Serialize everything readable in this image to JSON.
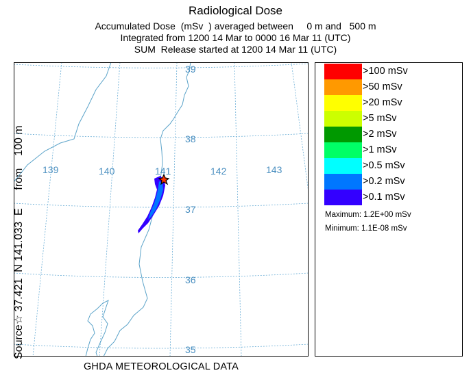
{
  "title": "Radiological Dose",
  "subtitle_lines": [
    "Accumulated Dose  (mSv  ) averaged between     0 m and   500 m",
    "Integrated from 1200 14 Mar to 0000 16 Mar 11 (UTC)",
    "SUM  Release started at 1200 14 Mar 11 (UTC)"
  ],
  "side_label": "Source☆ 37.421  N 141.033  E      from    100 m",
  "footer": "GHDA METEOROLOGICAL DATA",
  "map": {
    "lon_labels": [
      "139",
      "140",
      "141",
      "142",
      "143"
    ],
    "lat_labels": [
      "39",
      "38",
      "37",
      "36",
      "35"
    ],
    "grid_color": "#6baed6",
    "coast_color": "#5ba3c9",
    "source_marker": "star-icon"
  },
  "legend": {
    "items": [
      {
        "label": ">100 mSv",
        "color": "#ff0000"
      },
      {
        "label": ">50 mSv",
        "color": "#ff9900"
      },
      {
        "label": ">20 mSv",
        "color": "#ffff00"
      },
      {
        "label": ">5 mSv",
        "color": "#ccff00"
      },
      {
        "label": ">2 mSv",
        "color": "#009900"
      },
      {
        "label": ">1 mSv",
        "color": "#00ff66"
      },
      {
        "label": ">0.5 mSv",
        "color": "#00ffff"
      },
      {
        "label": ">0.2 mSv",
        "color": "#0077ff"
      },
      {
        "label": ">0.1 mSv",
        "color": "#3300ff"
      }
    ],
    "maximum": "Maximum: 1.2E+00 mSv",
    "minimum": "Minimum: 1.1E-08 mSv"
  },
  "plume_colors": {
    "outer": "#3300ff",
    "inner": "#0077ff"
  }
}
